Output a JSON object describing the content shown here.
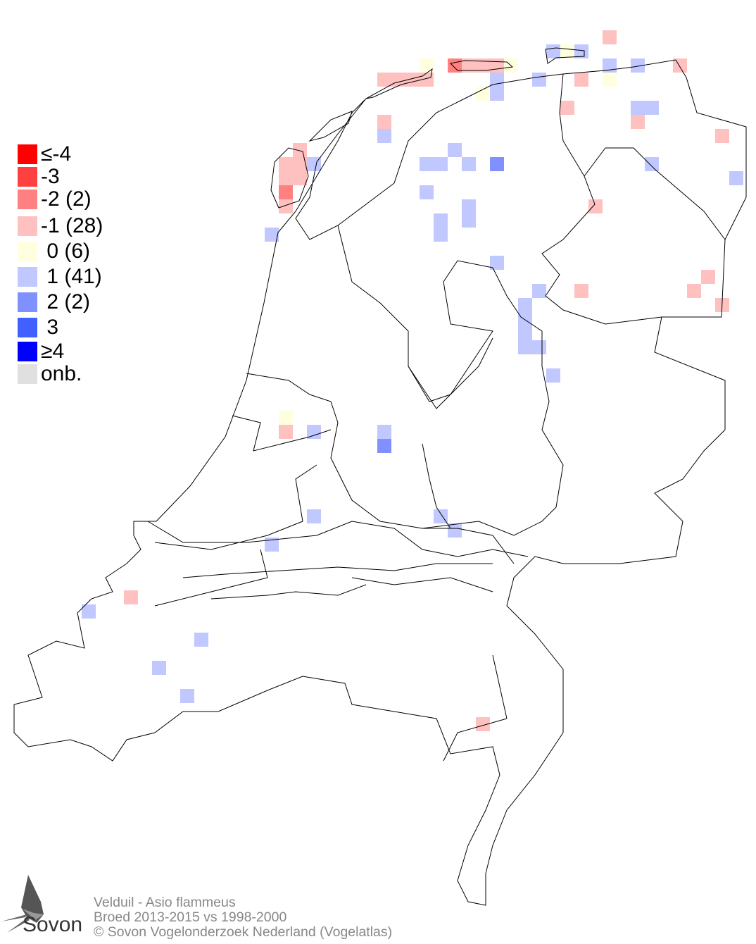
{
  "legend": [
    {
      "label": "≤-4",
      "color": "#ff0000"
    },
    {
      "label": "-3",
      "color": "#ff4040"
    },
    {
      "label": "-2 (2)",
      "color": "#ff8080"
    },
    {
      "label": "-1 (28)",
      "color": "#ffc0c0"
    },
    {
      "label": " 0 (6)",
      "color": "#ffffe0"
    },
    {
      "label": " 1 (41)",
      "color": "#c0c8ff"
    },
    {
      "label": " 2 (2)",
      "color": "#8090ff"
    },
    {
      "label": " 3",
      "color": "#4060ff"
    },
    {
      "label": "≥4",
      "color": "#0000ff"
    },
    {
      "label": "onb.",
      "color": "#e0e0e0"
    }
  ],
  "footer": {
    "species": "Velduil - Asio flammeus",
    "period": "Broed 2013-2015 vs 1998-2000",
    "copyright": "© Sovon Vogelonderzoek Nederland (Vogelatlas)"
  },
  "logo": {
    "text": "Sovon"
  }
}
